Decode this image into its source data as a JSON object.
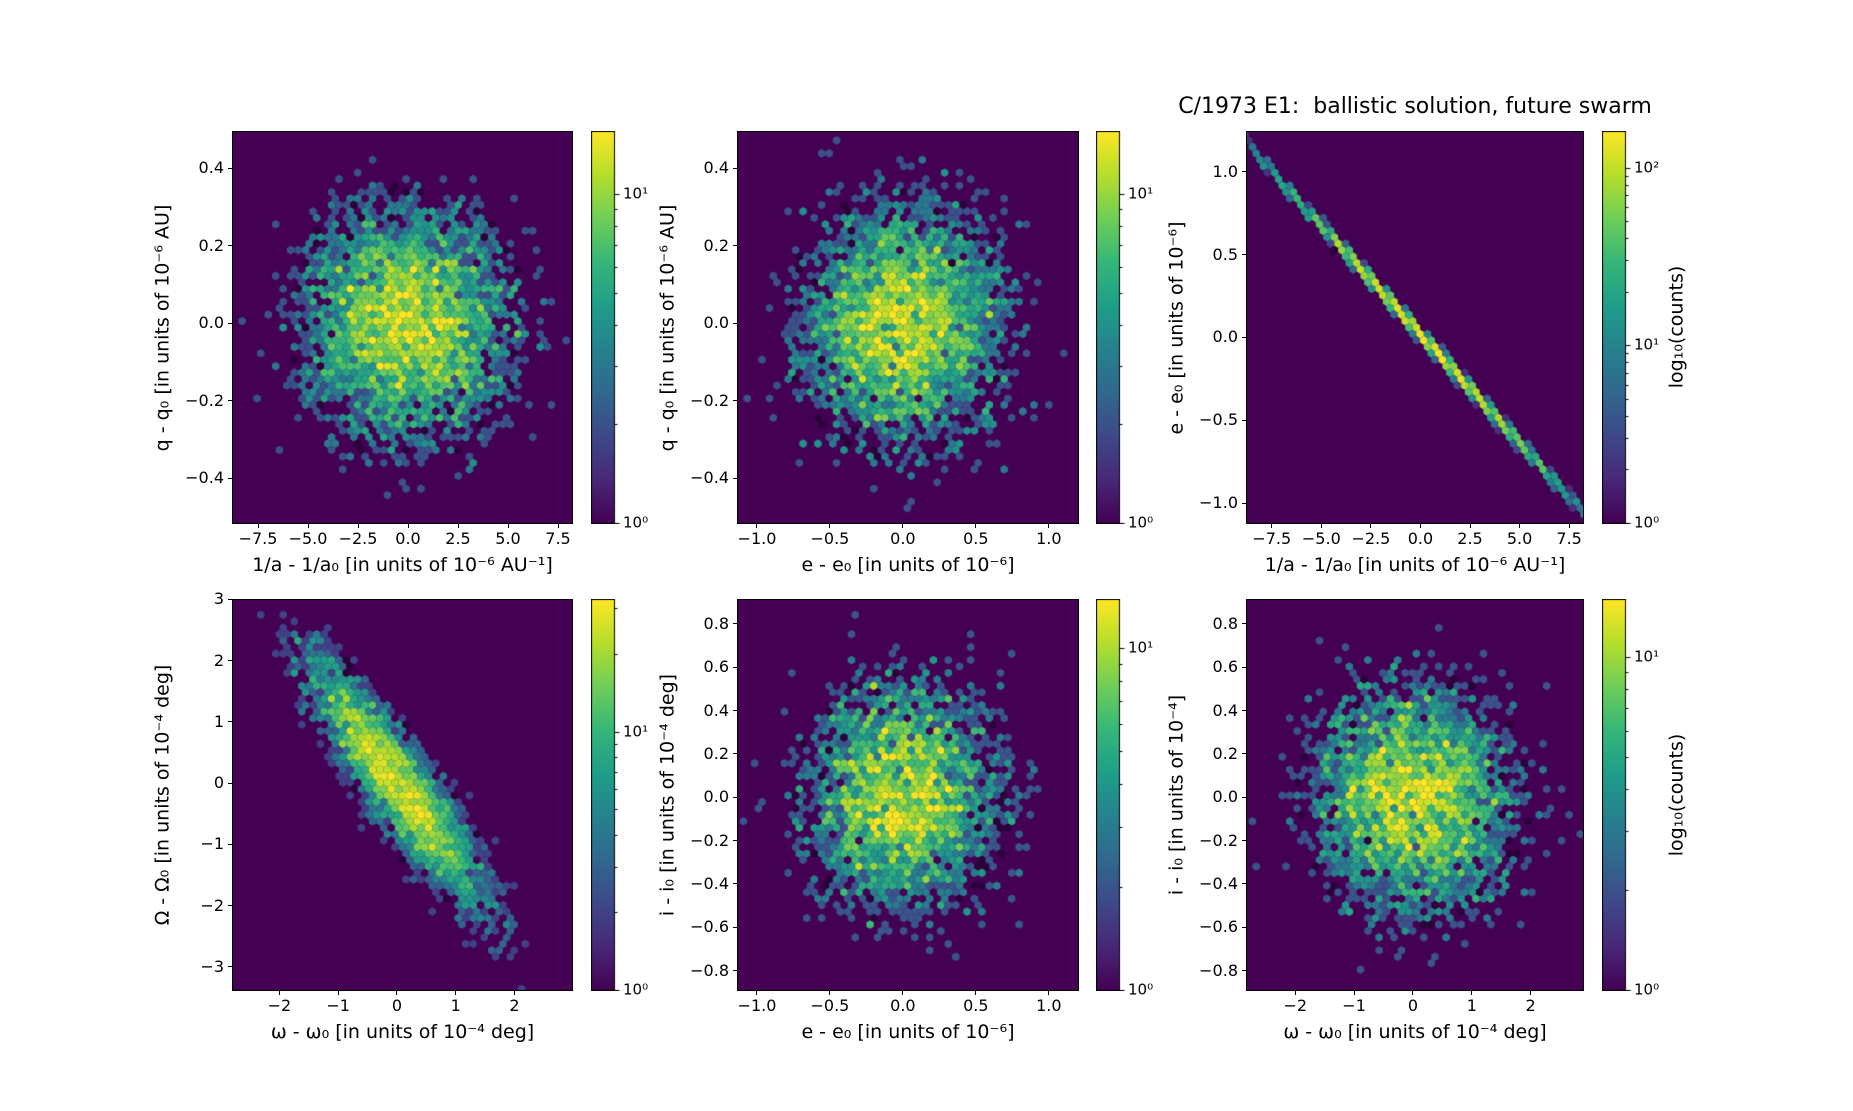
{
  "title": "C/1973 E1:  ballistic solution, future swarm",
  "colorbar_axis_label": "log₁₀(counts)",
  "colormap": "viridis",
  "colormap_stops": [
    "#440154",
    "#482878",
    "#3e4989",
    "#31688e",
    "#26828e",
    "#1f9e89",
    "#35b779",
    "#6ece58",
    "#b5de2b",
    "#fde725"
  ],
  "background_color": "#ffffff",
  "hex_zero_color": "#440154",
  "chart_data": [
    {
      "id": "q-vs-1overa",
      "type": "hexbin",
      "norm": "log",
      "xlabel": "1/a - 1/a₀ [in units of 10⁻⁶ AU⁻¹]",
      "ylabel": "q - q₀ [in units of 10⁻⁶ AU]",
      "xlim": [
        -8.75,
        8.2
      ],
      "ylim": [
        -0.516,
        0.493
      ],
      "xticks": [
        -7.5,
        -5,
        -2.5,
        0,
        2.5,
        5,
        7.5
      ],
      "xtick_labels": [
        "−7.5",
        "−5.0",
        "−2.5",
        "0.0",
        "2.5",
        "5.0",
        "7.5"
      ],
      "yticks": [
        0.4,
        0.2,
        0,
        -0.2,
        -0.4
      ],
      "ytick_labels": [
        "0.4",
        "0.2",
        "0.0",
        "−0.2",
        "−0.4"
      ],
      "distribution": {
        "kind": "gaussian",
        "center": [
          0,
          0
        ],
        "sigma_x": 2.85,
        "sigma_y": 0.168,
        "rho": 0,
        "peak_bin_count": 12
      },
      "colorbar": {
        "scale": "log10",
        "tick_labels": [
          "10¹",
          "10⁰"
        ],
        "tick_values": [
          10,
          1
        ],
        "vmax_log10": 1.19
      }
    },
    {
      "id": "q-vs-e",
      "type": "hexbin",
      "norm": "log",
      "xlabel": "e - e₀ [in units of 10⁻⁶]",
      "ylabel": "q - q₀ [in units of 10⁻⁶ AU]",
      "xlim": [
        -1.13,
        1.2
      ],
      "ylim": [
        -0.516,
        0.493
      ],
      "xticks": [
        -1,
        -0.5,
        0,
        0.5,
        1
      ],
      "xtick_labels": [
        "−1.0",
        "−0.5",
        "0.0",
        "0.5",
        "1.0"
      ],
      "yticks": [
        0.4,
        0.2,
        0,
        -0.2,
        -0.4
      ],
      "ytick_labels": [
        "0.4",
        "0.2",
        "0.0",
        "−0.2",
        "−0.4"
      ],
      "distribution": {
        "kind": "gaussian",
        "center": [
          0,
          0
        ],
        "sigma_x": 0.38,
        "sigma_y": 0.168,
        "rho": 0,
        "peak_bin_count": 12
      },
      "colorbar": {
        "scale": "log10",
        "tick_labels": [
          "10¹",
          "10⁰"
        ],
        "tick_values": [
          10,
          1
        ],
        "vmax_log10": 1.19
      }
    },
    {
      "id": "e-vs-1overa",
      "type": "hexbin",
      "norm": "log",
      "xlabel": "1/a - 1/a₀ [in units of 10⁻⁶ AU⁻¹]",
      "ylabel": "e - e₀ [in units of 10⁻⁶]",
      "xlim": [
        -8.75,
        8.2
      ],
      "ylim": [
        -1.12,
        1.24
      ],
      "xticks": [
        -7.5,
        -5,
        -2.5,
        0,
        2.5,
        5,
        7.5
      ],
      "xtick_labels": [
        "−7.5",
        "−5.0",
        "−2.5",
        "0.0",
        "2.5",
        "5.0",
        "7.5"
      ],
      "yticks": [
        1,
        0.5,
        0,
        -0.5,
        -1
      ],
      "ytick_labels": [
        "1.0",
        "0.5",
        "0.0",
        "−0.5",
        "−1.0"
      ],
      "distribution": {
        "kind": "line",
        "slope": -0.131,
        "intercept": 0.02,
        "sigma_along_x": 3.5,
        "sigma_perp_y": 0.022,
        "peak_bin_count": 150
      },
      "colorbar": {
        "scale": "log10",
        "tick_labels": [
          "10²",
          "10¹",
          "10⁰"
        ],
        "tick_values": [
          100,
          10,
          1
        ],
        "vmax_log10": 2.2
      }
    },
    {
      "id": "Omega-vs-omega",
      "type": "hexbin",
      "norm": "log",
      "xlabel": "ω - ω₀ [in units of 10⁻⁴ deg]",
      "ylabel": "Ω - Ω₀ [in units of 10⁻⁴ deg]",
      "xlim": [
        -2.79,
        2.98
      ],
      "ylim": [
        -3.38,
        2.99
      ],
      "xticks": [
        -2,
        -1,
        0,
        1,
        2
      ],
      "xtick_labels": [
        "−2",
        "−1",
        "0",
        "1",
        "2"
      ],
      "yticks": [
        3,
        2,
        1,
        0,
        -1,
        -2,
        -3
      ],
      "ytick_labels": [
        "3",
        "2",
        "1",
        "0",
        "−1",
        "−2",
        "−3"
      ],
      "distribution": {
        "kind": "gaussian",
        "center": [
          0,
          0
        ],
        "sigma_x": 0.8,
        "sigma_y": 1.08,
        "rho": -0.9,
        "peak_bin_count": 26
      },
      "colorbar": {
        "scale": "log10",
        "tick_labels": [
          "10¹",
          "10⁰"
        ],
        "tick_values": [
          10,
          1
        ],
        "vmax_log10": 1.51
      }
    },
    {
      "id": "i-vs-e",
      "type": "hexbin",
      "norm": "log",
      "xlabel": "e - e₀ [in units of 10⁻⁶]",
      "ylabel": "i - i₀ [in units of 10⁻⁴ deg]",
      "xlim": [
        -1.13,
        1.2
      ],
      "ylim": [
        -0.89,
        0.91
      ],
      "xticks": [
        -1,
        -0.5,
        0,
        0.5,
        1
      ],
      "xtick_labels": [
        "−1.0",
        "−0.5",
        "0.0",
        "0.5",
        "1.0"
      ],
      "yticks": [
        0.8,
        0.6,
        0.4,
        0.2,
        0,
        -0.2,
        -0.4,
        -0.6,
        -0.8
      ],
      "ytick_labels": [
        "0.8",
        "0.6",
        "0.4",
        "0.2",
        "0.0",
        "−0.2",
        "−0.4",
        "−0.6",
        "−0.8"
      ],
      "distribution": {
        "kind": "gaussian",
        "center": [
          0,
          0
        ],
        "sigma_x": 0.36,
        "sigma_y": 0.29,
        "rho": 0,
        "peak_bin_count": 10.5
      },
      "colorbar": {
        "scale": "log10",
        "tick_labels": [
          "10¹",
          "10⁰"
        ],
        "tick_values": [
          10,
          1
        ],
        "vmax_log10": 1.14
      }
    },
    {
      "id": "i-vs-omega",
      "type": "hexbin",
      "norm": "log",
      "xlabel": "ω - ω₀ [in units of 10⁻⁴ deg]",
      "ylabel": "i - i₀ [in units of 10⁻⁴]",
      "xlim": [
        -2.82,
        2.89
      ],
      "ylim": [
        -0.89,
        0.91
      ],
      "xticks": [
        -2,
        -1,
        0,
        1,
        2
      ],
      "xtick_labels": [
        "−2",
        "−1",
        "0",
        "1",
        "2"
      ],
      "yticks": [
        0.8,
        0.6,
        0.4,
        0.2,
        0,
        -0.2,
        -0.4,
        -0.6,
        -0.8
      ],
      "ytick_labels": [
        "0.8",
        "0.6",
        "0.4",
        "0.2",
        "0.0",
        "−0.2",
        "−0.4",
        "−0.6",
        "−0.8"
      ],
      "distribution": {
        "kind": "gaussian",
        "center": [
          0,
          0
        ],
        "sigma_x": 0.95,
        "sigma_y": 0.29,
        "rho": 0,
        "peak_bin_count": 11.5
      },
      "colorbar": {
        "scale": "log10",
        "tick_labels": [
          "10¹",
          "10⁰"
        ],
        "tick_values": [
          10,
          1
        ],
        "vmax_log10": 1.17
      }
    }
  ]
}
